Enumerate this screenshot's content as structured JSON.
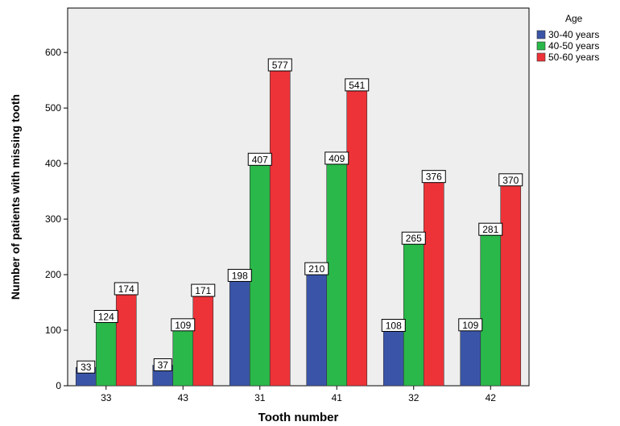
{
  "chart_data": {
    "type": "bar",
    "title": "",
    "xlabel": "Tooth number",
    "ylabel": "Number of patients with missing tooth",
    "categories": [
      "33",
      "43",
      "31",
      "41",
      "32",
      "42"
    ],
    "ylim": [
      0,
      680
    ],
    "yticks": [
      0,
      100,
      200,
      300,
      400,
      500,
      600
    ],
    "grid": false,
    "plot_background": "#eeeeee",
    "legend": {
      "title": "Age",
      "position": "top-right"
    },
    "series": [
      {
        "name": "30-40 years",
        "color": "#3a55a8",
        "values": [
          33,
          37,
          198,
          210,
          108,
          109
        ]
      },
      {
        "name": "40-50 years",
        "color": "#2ab84a",
        "values": [
          124,
          109,
          407,
          409,
          265,
          281
        ]
      },
      {
        "name": "50-60 years",
        "color": "#ee3338",
        "values": [
          174,
          171,
          577,
          541,
          376,
          370
        ]
      }
    ]
  }
}
